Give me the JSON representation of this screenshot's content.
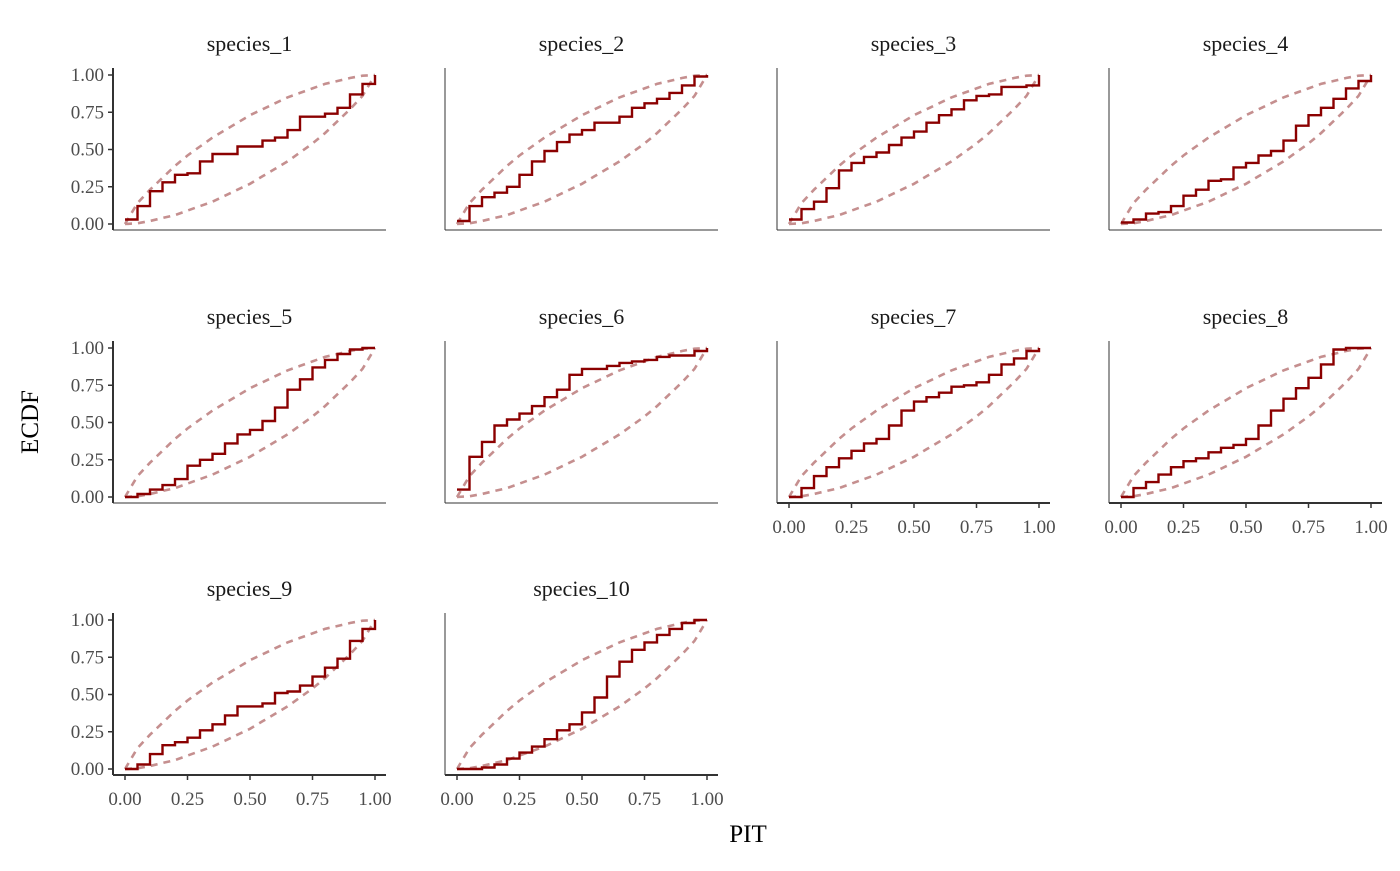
{
  "chart_data": {
    "type": "line",
    "layout": "facet_wrap",
    "xlabel": "PIT",
    "ylabel": "ECDF",
    "xlim": [
      0,
      1
    ],
    "ylim": [
      0,
      1
    ],
    "x_ticks": [
      "0.00",
      "0.25",
      "0.50",
      "0.75",
      "1.00"
    ],
    "y_ticks": [
      "0.00",
      "0.25",
      "0.50",
      "0.75",
      "1.00"
    ],
    "grid": false,
    "colors": {
      "ecdf": "#8b0000",
      "band": "#c58f8f",
      "axis": "#333333"
    },
    "envelope_x": [
      0,
      0.05,
      0.1,
      0.15,
      0.2,
      0.25,
      0.3,
      0.35,
      0.4,
      0.45,
      0.5,
      0.55,
      0.6,
      0.65,
      0.7,
      0.75,
      0.8,
      0.85,
      0.9,
      0.95,
      1.0
    ],
    "envelope_upper": [
      0,
      0.14,
      0.23,
      0.31,
      0.39,
      0.46,
      0.52,
      0.58,
      0.63,
      0.68,
      0.73,
      0.77,
      0.81,
      0.85,
      0.88,
      0.91,
      0.94,
      0.96,
      0.98,
      0.995,
      1.0
    ],
    "envelope_lower": [
      0,
      0.005,
      0.02,
      0.04,
      0.06,
      0.09,
      0.12,
      0.15,
      0.19,
      0.23,
      0.27,
      0.32,
      0.37,
      0.42,
      0.48,
      0.54,
      0.61,
      0.69,
      0.77,
      0.86,
      1.0
    ],
    "panels": [
      {
        "title": "species_1",
        "x": [
          0.0,
          0.05,
          0.1,
          0.15,
          0.2,
          0.25,
          0.3,
          0.35,
          0.4,
          0.45,
          0.5,
          0.55,
          0.6,
          0.65,
          0.7,
          0.75,
          0.8,
          0.85,
          0.9,
          0.95,
          1.0
        ],
        "y": [
          0.03,
          0.12,
          0.22,
          0.28,
          0.33,
          0.34,
          0.42,
          0.47,
          0.47,
          0.52,
          0.52,
          0.56,
          0.58,
          0.63,
          0.72,
          0.72,
          0.74,
          0.78,
          0.87,
          0.94,
          1.0
        ]
      },
      {
        "title": "species_2",
        "x": [
          0.0,
          0.05,
          0.1,
          0.15,
          0.2,
          0.25,
          0.3,
          0.35,
          0.4,
          0.45,
          0.5,
          0.55,
          0.6,
          0.65,
          0.7,
          0.75,
          0.8,
          0.85,
          0.9,
          0.95,
          1.0
        ],
        "y": [
          0.02,
          0.12,
          0.18,
          0.21,
          0.25,
          0.33,
          0.42,
          0.49,
          0.55,
          0.6,
          0.63,
          0.68,
          0.68,
          0.72,
          0.78,
          0.81,
          0.84,
          0.88,
          0.93,
          0.99,
          1.0
        ]
      },
      {
        "title": "species_3",
        "x": [
          0.0,
          0.05,
          0.1,
          0.15,
          0.2,
          0.25,
          0.3,
          0.35,
          0.4,
          0.45,
          0.5,
          0.55,
          0.6,
          0.65,
          0.7,
          0.75,
          0.8,
          0.85,
          0.9,
          0.95,
          1.0
        ],
        "y": [
          0.03,
          0.1,
          0.15,
          0.24,
          0.36,
          0.41,
          0.45,
          0.48,
          0.53,
          0.58,
          0.62,
          0.68,
          0.73,
          0.77,
          0.83,
          0.86,
          0.87,
          0.92,
          0.92,
          0.93,
          1.0
        ]
      },
      {
        "title": "species_4",
        "x": [
          0.0,
          0.05,
          0.1,
          0.15,
          0.2,
          0.25,
          0.3,
          0.35,
          0.4,
          0.45,
          0.5,
          0.55,
          0.6,
          0.65,
          0.7,
          0.75,
          0.8,
          0.85,
          0.9,
          0.95,
          1.0
        ],
        "y": [
          0.01,
          0.03,
          0.07,
          0.08,
          0.12,
          0.19,
          0.23,
          0.29,
          0.3,
          0.38,
          0.41,
          0.46,
          0.49,
          0.56,
          0.66,
          0.73,
          0.78,
          0.84,
          0.91,
          0.96,
          1.0
        ]
      },
      {
        "title": "species_5",
        "x": [
          0.0,
          0.05,
          0.1,
          0.15,
          0.2,
          0.25,
          0.3,
          0.35,
          0.4,
          0.45,
          0.5,
          0.55,
          0.6,
          0.65,
          0.7,
          0.75,
          0.8,
          0.85,
          0.9,
          0.95,
          1.0
        ],
        "y": [
          0.0,
          0.02,
          0.05,
          0.08,
          0.12,
          0.21,
          0.25,
          0.29,
          0.36,
          0.42,
          0.45,
          0.51,
          0.6,
          0.72,
          0.79,
          0.87,
          0.92,
          0.96,
          0.99,
          1.0,
          1.0
        ]
      },
      {
        "title": "species_6",
        "x": [
          0.0,
          0.05,
          0.1,
          0.15,
          0.2,
          0.25,
          0.3,
          0.35,
          0.4,
          0.45,
          0.5,
          0.55,
          0.6,
          0.65,
          0.7,
          0.75,
          0.8,
          0.85,
          0.9,
          0.95,
          1.0
        ],
        "y": [
          0.05,
          0.27,
          0.37,
          0.48,
          0.52,
          0.56,
          0.61,
          0.67,
          0.72,
          0.82,
          0.86,
          0.86,
          0.88,
          0.9,
          0.91,
          0.92,
          0.94,
          0.95,
          0.95,
          0.98,
          1.0
        ]
      },
      {
        "title": "species_7",
        "x": [
          0.0,
          0.05,
          0.1,
          0.15,
          0.2,
          0.25,
          0.3,
          0.35,
          0.4,
          0.45,
          0.5,
          0.55,
          0.6,
          0.65,
          0.7,
          0.75,
          0.8,
          0.85,
          0.9,
          0.95,
          1.0
        ],
        "y": [
          0.0,
          0.06,
          0.14,
          0.2,
          0.26,
          0.31,
          0.36,
          0.39,
          0.48,
          0.58,
          0.64,
          0.67,
          0.7,
          0.74,
          0.75,
          0.77,
          0.82,
          0.89,
          0.93,
          0.98,
          1.0
        ]
      },
      {
        "title": "species_8",
        "x": [
          0.0,
          0.05,
          0.1,
          0.15,
          0.2,
          0.25,
          0.3,
          0.35,
          0.4,
          0.45,
          0.5,
          0.55,
          0.6,
          0.65,
          0.7,
          0.75,
          0.8,
          0.85,
          0.9,
          0.95,
          1.0
        ],
        "y": [
          0.0,
          0.06,
          0.1,
          0.15,
          0.2,
          0.24,
          0.26,
          0.3,
          0.33,
          0.35,
          0.39,
          0.48,
          0.58,
          0.66,
          0.73,
          0.8,
          0.89,
          0.99,
          1.0,
          1.0,
          1.0
        ]
      },
      {
        "title": "species_9",
        "x": [
          0.0,
          0.05,
          0.1,
          0.15,
          0.2,
          0.25,
          0.3,
          0.35,
          0.4,
          0.45,
          0.5,
          0.55,
          0.6,
          0.65,
          0.7,
          0.75,
          0.8,
          0.85,
          0.9,
          0.95,
          1.0
        ],
        "y": [
          0.0,
          0.03,
          0.1,
          0.16,
          0.18,
          0.21,
          0.26,
          0.3,
          0.36,
          0.42,
          0.42,
          0.44,
          0.51,
          0.52,
          0.56,
          0.62,
          0.68,
          0.74,
          0.86,
          0.94,
          1.0
        ]
      },
      {
        "title": "species_10",
        "x": [
          0.0,
          0.05,
          0.1,
          0.15,
          0.2,
          0.25,
          0.3,
          0.35,
          0.4,
          0.45,
          0.5,
          0.55,
          0.6,
          0.65,
          0.7,
          0.75,
          0.8,
          0.85,
          0.9,
          0.95,
          1.0
        ],
        "y": [
          0.0,
          0.0,
          0.01,
          0.03,
          0.07,
          0.11,
          0.15,
          0.2,
          0.26,
          0.3,
          0.38,
          0.48,
          0.62,
          0.72,
          0.8,
          0.85,
          0.9,
          0.94,
          0.98,
          1.0,
          1.0
        ]
      }
    ]
  }
}
